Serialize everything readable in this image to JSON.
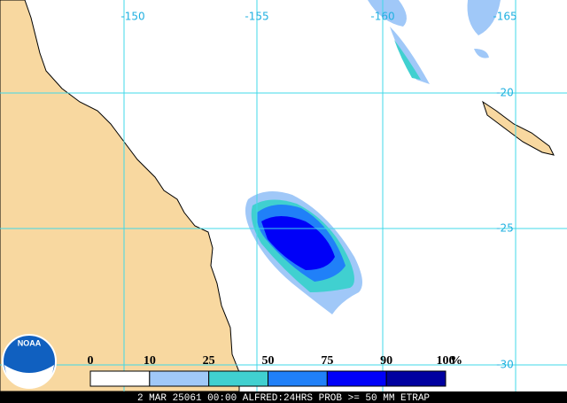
{
  "map": {
    "lon_labels": [
      "-150",
      "-155",
      "-160",
      "-165"
    ],
    "lat_labels": [
      "-20",
      "-25",
      "-30"
    ],
    "legend": {
      "labels": [
        "0",
        "10",
        "25",
        "50",
        "75",
        "90",
        "100"
      ],
      "unit": "%",
      "colors": [
        "#ffffff",
        "#a0c8f8",
        "#40d0d0",
        "#2080f8",
        "#0000f8",
        "#0000a0"
      ]
    },
    "logo": "NOAA",
    "footer": "2 MAR 25061 00:00 ALFRED:24HRS PROB >= 50 MM ETRAP"
  }
}
